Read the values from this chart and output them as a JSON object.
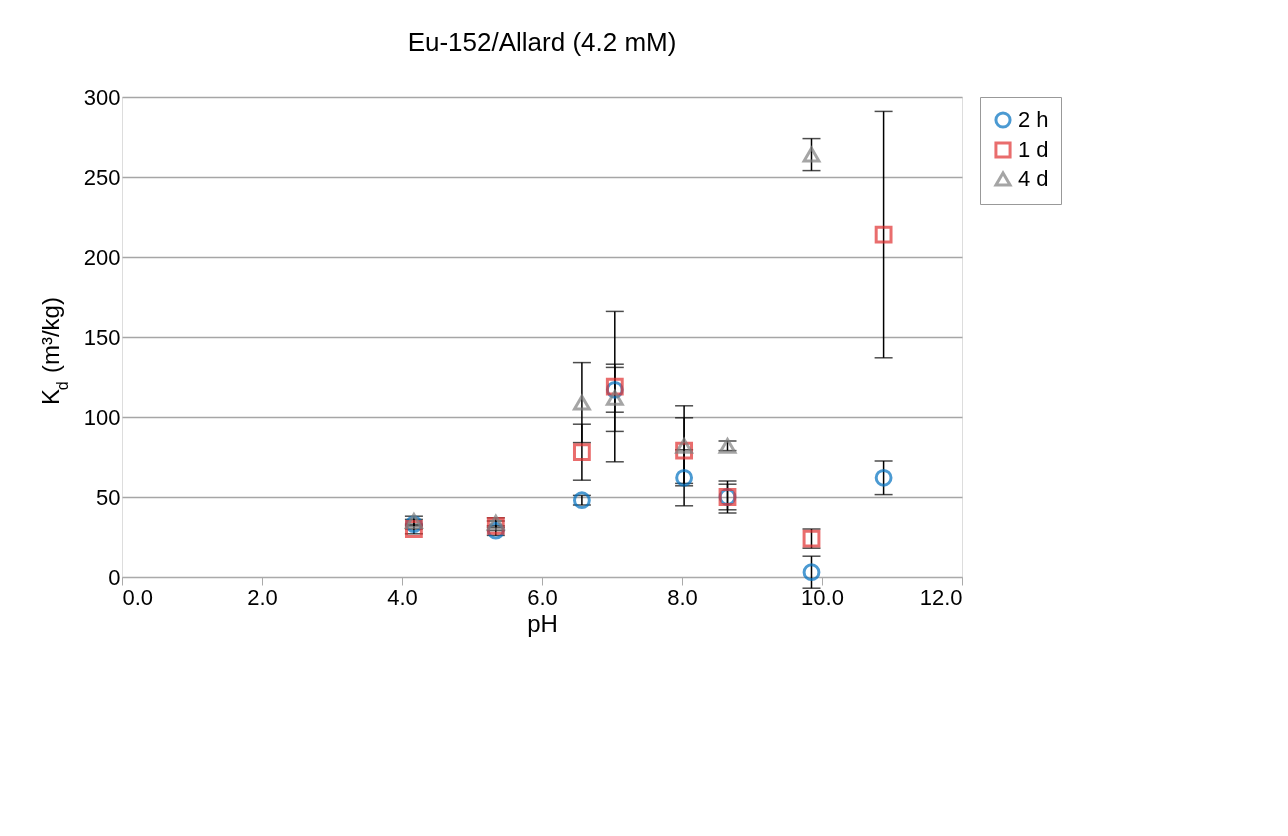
{
  "chart_data": {
    "type": "scatter",
    "title": "Eu-152/Allard (4.2 mM)",
    "xlabel": "pH",
    "ylabel": "K$_{d}$ (m³/kg)",
    "xlim": [
      0,
      12
    ],
    "xticks": [
      {
        "value": 0,
        "label": "0.0"
      },
      {
        "value": 2,
        "label": "2.0"
      },
      {
        "value": 4,
        "label": "4.0"
      },
      {
        "value": 6,
        "label": "6.0"
      },
      {
        "value": 8,
        "label": "8.0"
      },
      {
        "value": 10,
        "label": "10.0"
      },
      {
        "value": 12,
        "label": "12.0"
      }
    ],
    "ylim": [
      0,
      300
    ],
    "yticks": [
      0,
      50,
      100,
      150,
      200,
      250,
      300
    ],
    "grid": "y",
    "legend": "right",
    "series": [
      {
        "name": "2 h",
        "color": "#0070c0",
        "marker": "circle",
        "x": [
          4.17,
          5.34,
          6.57,
          7.04,
          8.03,
          8.65,
          9.85,
          10.88
        ],
        "values": [
          33,
          29,
          48,
          117,
          62,
          50,
          3,
          62
        ],
        "errors": [
          3,
          3,
          3,
          14,
          17.5,
          10,
          10,
          10.5
        ]
      },
      {
        "name": "1 d",
        "color": "#e03030",
        "marker": "square",
        "x": [
          4.17,
          5.34,
          6.57,
          7.04,
          8.03,
          8.65,
          9.85,
          10.88
        ],
        "values": [
          30,
          32,
          78,
          119,
          79,
          50,
          24,
          214
        ],
        "errors": [
          3,
          3,
          17.5,
          47,
          20.5,
          8,
          6,
          77
        ]
      },
      {
        "name": "4 d",
        "color": "#808080",
        "marker": "triangle",
        "x": [
          4.17,
          5.34,
          6.57,
          7.04,
          8.03,
          8.65,
          9.85
        ],
        "values": [
          35,
          34,
          109,
          112,
          82,
          82,
          264
        ],
        "errors": [
          3,
          3,
          25,
          21,
          25,
          3,
          10
        ]
      }
    ]
  }
}
